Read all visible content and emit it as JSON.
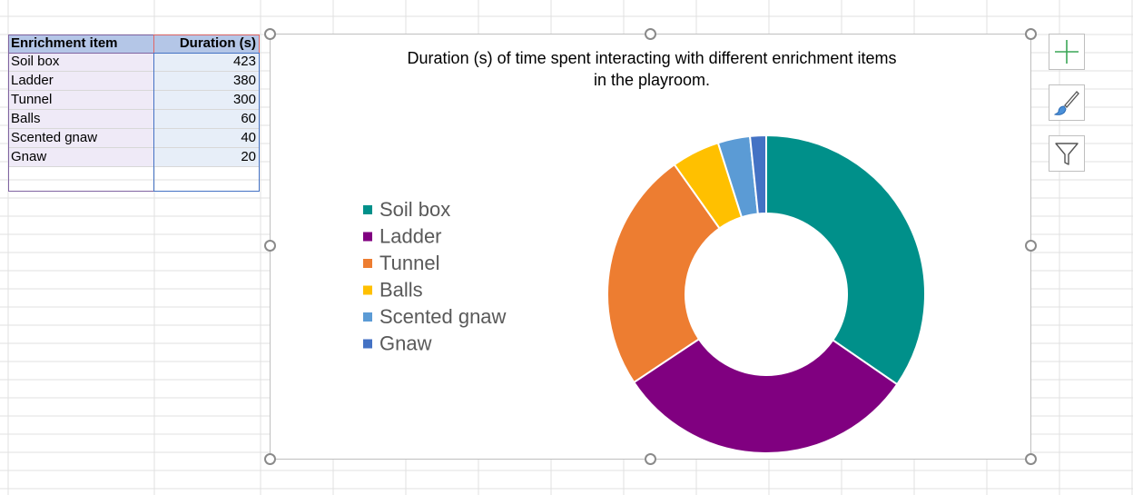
{
  "table": {
    "headers": [
      "Enrichment item",
      "Duration (s)"
    ],
    "rows": [
      {
        "item": "Soil box",
        "duration": "423"
      },
      {
        "item": "Ladder",
        "duration": "380"
      },
      {
        "item": "Tunnel",
        "duration": "300"
      },
      {
        "item": "Balls",
        "duration": "60"
      },
      {
        "item": "Scented gnaw",
        "duration": "40"
      },
      {
        "item": "Gnaw",
        "duration": "20"
      }
    ]
  },
  "side_buttons": {
    "elements": "plus-icon",
    "styles": "paintbrush-icon",
    "filters": "funnel-icon"
  },
  "chart_data": {
    "type": "pie",
    "variant": "doughnut",
    "title_line1": "Duration (s) of time spent interacting with different enrichment items",
    "title_line2": "in the playroom.",
    "categories": [
      "Soil box",
      "Ladder",
      "Tunnel",
      "Balls",
      "Scented gnaw",
      "Gnaw"
    ],
    "values": [
      423,
      380,
      300,
      60,
      40,
      20
    ],
    "colors": [
      "#00908a",
      "#800080",
      "#ed7d31",
      "#ffc000",
      "#5b9bd5",
      "#4472c4"
    ],
    "legend_position": "left"
  }
}
